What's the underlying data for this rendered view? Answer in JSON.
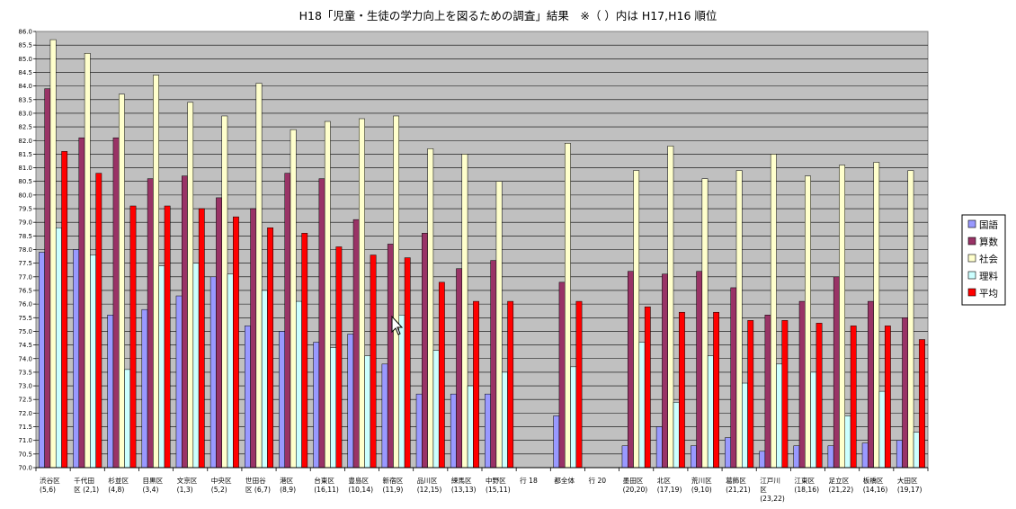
{
  "chart_data": {
    "type": "bar",
    "title": "H18「児童・生徒の学力向上を図るための調査」結果　※（ ）内は H17,H16 順位",
    "ylim": [
      70.0,
      86.0
    ],
    "y_step": 0.5,
    "grid": true,
    "legend_position": "right",
    "categories": [
      [
        "渋谷区",
        "(5,6)"
      ],
      [
        "千代田",
        "区 (2,1)"
      ],
      [
        "杉並区",
        "(4,8)"
      ],
      [
        "目黒区",
        "(3,4)"
      ],
      [
        "文京区",
        "(1,3)"
      ],
      [
        "中央区",
        "(5,2)"
      ],
      [
        "世田谷",
        "区 (6,7)"
      ],
      [
        "港区",
        "(8,9)"
      ],
      [
        "台東区",
        "(16,11)"
      ],
      [
        "豊島区",
        "(10,14)"
      ],
      [
        "新宿区",
        "(11,9)"
      ],
      [
        "品川区",
        "(12,15)"
      ],
      [
        "練馬区",
        "(13,13)"
      ],
      [
        "中野区",
        "(15,11)"
      ],
      [
        "行 18"
      ],
      [
        "都全体"
      ],
      [
        "行 20"
      ],
      [
        "墨田区",
        "(20,20)"
      ],
      [
        "北区",
        "(17,19)"
      ],
      [
        "荒川区",
        "(9,10)"
      ],
      [
        "葛飾区",
        "(21,21)"
      ],
      [
        "江戸川",
        "区",
        "(23,22)"
      ],
      [
        "江東区",
        "(18,16)"
      ],
      [
        "足立区",
        "(21,22)"
      ],
      [
        "板橋区",
        "(14,16)"
      ],
      [
        "大田区",
        "(19,17)"
      ]
    ],
    "series": [
      {
        "name": "国語",
        "color": "#9999ff",
        "values": [
          77.9,
          78.0,
          75.6,
          75.8,
          76.3,
          77.0,
          75.2,
          75.0,
          74.6,
          74.9,
          73.8,
          72.7,
          72.7,
          72.7,
          null,
          71.9,
          null,
          70.8,
          71.5,
          70.8,
          71.1,
          70.6,
          70.8,
          70.8,
          70.9,
          71.0
        ]
      },
      {
        "name": "算数",
        "color": "#993366",
        "values": [
          83.9,
          82.1,
          82.1,
          80.6,
          80.7,
          79.9,
          79.5,
          80.8,
          80.6,
          79.1,
          78.2,
          78.6,
          77.3,
          77.6,
          null,
          76.8,
          null,
          77.2,
          77.1,
          77.2,
          76.6,
          75.6,
          76.1,
          77.0,
          76.1,
          75.5
        ]
      },
      {
        "name": "社会",
        "color": "#ffffcc",
        "values": [
          85.7,
          85.2,
          83.7,
          84.4,
          83.4,
          82.9,
          84.1,
          82.4,
          82.7,
          82.8,
          82.9,
          81.7,
          81.5,
          80.5,
          null,
          81.9,
          null,
          80.9,
          81.8,
          80.6,
          80.9,
          81.5,
          80.7,
          81.1,
          81.2,
          80.9
        ]
      },
      {
        "name": "理料",
        "color": "#ccffff",
        "values": [
          78.8,
          77.8,
          73.6,
          77.4,
          77.5,
          77.1,
          76.5,
          76.1,
          74.4,
          74.1,
          75.6,
          74.3,
          73.0,
          73.5,
          null,
          73.7,
          null,
          74.6,
          72.4,
          74.1,
          73.1,
          73.8,
          73.5,
          71.9,
          72.8,
          71.3
        ]
      },
      {
        "name": "平均",
        "color": "#ff0000",
        "values": [
          81.6,
          80.8,
          79.6,
          79.6,
          79.5,
          79.2,
          78.8,
          78.6,
          78.1,
          77.8,
          77.7,
          76.8,
          76.1,
          76.1,
          null,
          76.1,
          null,
          75.9,
          75.7,
          75.7,
          75.4,
          75.4,
          75.3,
          75.2,
          75.2,
          74.7
        ]
      }
    ]
  }
}
